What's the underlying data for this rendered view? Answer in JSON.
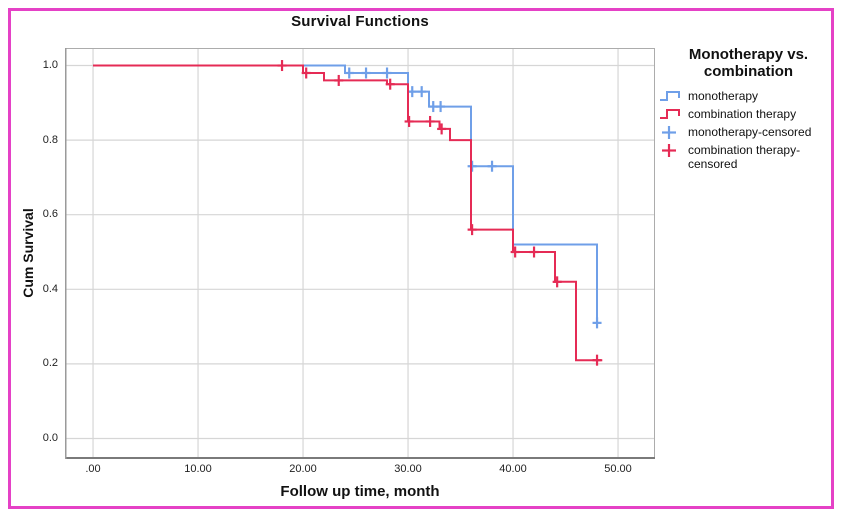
{
  "frame": {
    "selection_border_color": "#e541c6",
    "background": "#ffffff"
  },
  "chart": {
    "title": "Survival Functions",
    "x_axis": {
      "label": "Follow up time, month"
    },
    "y_axis": {
      "label": "Cum Survival"
    }
  },
  "legend": {
    "title_line1": "Monotherapy vs.",
    "title_line2": "combination",
    "items": [
      {
        "label": "monotherapy",
        "glyph": "step-line",
        "color": "#6f9fe8"
      },
      {
        "label": "combination therapy",
        "glyph": "step-line",
        "color": "#e52b55"
      },
      {
        "label": "monotherapy-censored",
        "glyph": "plus-mark",
        "color": "#6f9fe8"
      },
      {
        "label": "combination therapy-censored",
        "glyph": "plus-mark",
        "color": "#e52b55"
      }
    ]
  },
  "chart_data": {
    "type": "line",
    "subtype": "kaplan-meier-step",
    "title": "Survival Functions",
    "xlabel": "Follow up time, month",
    "ylabel": "Cum Survival",
    "xlim": [
      -2.67,
      53.52
    ],
    "ylim": [
      -0.055,
      1.047
    ],
    "x_ticks": [
      0,
      10,
      20,
      30,
      40,
      50
    ],
    "x_tick_labels": [
      ".00",
      "10.00",
      "20.00",
      "30.00",
      "40.00",
      "50.00"
    ],
    "y_ticks": [
      0.0,
      0.2,
      0.4,
      0.6,
      0.8,
      1.0
    ],
    "y_tick_labels": [
      "0.0",
      "0.2",
      "0.4",
      "0.6",
      "0.8",
      "1.0"
    ],
    "grid": true,
    "grid_color": "#d6d6d6",
    "frame_color": "#acacac",
    "axis_color": "#7a7a7a",
    "legend_position": "right",
    "series": [
      {
        "name": "monotherapy",
        "color": "#6f9fe8",
        "draw_order": 1,
        "points": [
          [
            0,
            1.0
          ],
          [
            24,
            1.0
          ],
          [
            24,
            0.98
          ],
          [
            30,
            0.98
          ],
          [
            30,
            0.93
          ],
          [
            32,
            0.93
          ],
          [
            32,
            0.89
          ],
          [
            36,
            0.89
          ],
          [
            36,
            0.73
          ],
          [
            40,
            0.73
          ],
          [
            40,
            0.52
          ],
          [
            48,
            0.52
          ],
          [
            48,
            0.31
          ]
        ],
        "censored": [
          [
            24.4,
            0.98
          ],
          [
            26,
            0.98
          ],
          [
            28,
            0.98
          ],
          [
            30.4,
            0.93
          ],
          [
            31.3,
            0.93
          ],
          [
            32.4,
            0.89
          ],
          [
            33.1,
            0.89
          ],
          [
            36.1,
            0.73
          ],
          [
            38,
            0.73
          ],
          [
            48,
            0.31
          ]
        ]
      },
      {
        "name": "combination therapy",
        "color": "#e52b55",
        "draw_order": 2,
        "points": [
          [
            0,
            1.0
          ],
          [
            20,
            1.0
          ],
          [
            20,
            0.98
          ],
          [
            22,
            0.98
          ],
          [
            22,
            0.96
          ],
          [
            28,
            0.96
          ],
          [
            28,
            0.95
          ],
          [
            30,
            0.95
          ],
          [
            30,
            0.85
          ],
          [
            33,
            0.85
          ],
          [
            33,
            0.83
          ],
          [
            34,
            0.83
          ],
          [
            34,
            0.8
          ],
          [
            36,
            0.8
          ],
          [
            36,
            0.56
          ],
          [
            40,
            0.56
          ],
          [
            40,
            0.5
          ],
          [
            44,
            0.5
          ],
          [
            44,
            0.42
          ],
          [
            46,
            0.42
          ],
          [
            46,
            0.21
          ],
          [
            48.5,
            0.21
          ]
        ],
        "censored": [
          [
            18,
            1.0
          ],
          [
            20.3,
            0.98
          ],
          [
            23.4,
            0.96
          ],
          [
            28.3,
            0.95
          ],
          [
            30.1,
            0.85
          ],
          [
            32.1,
            0.85
          ],
          [
            33.2,
            0.83
          ],
          [
            36.1,
            0.56
          ],
          [
            40.2,
            0.5
          ],
          [
            42,
            0.5
          ],
          [
            44.2,
            0.42
          ],
          [
            48,
            0.21
          ]
        ]
      }
    ]
  }
}
